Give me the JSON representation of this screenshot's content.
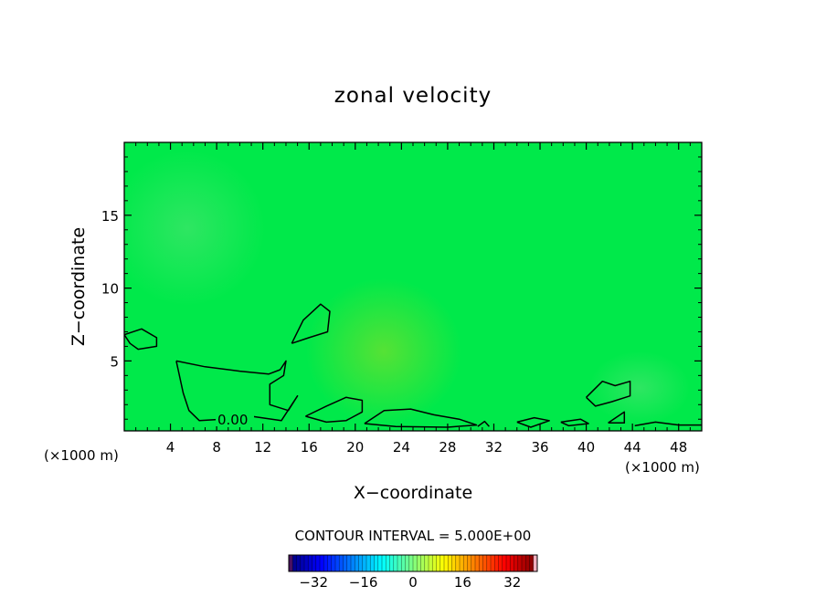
{
  "chart_data": {
    "type": "heatmap",
    "title": "zonal velocity",
    "xlabel": "X−coordinate",
    "ylabel": "Z−coordinate",
    "x_unit_left": "(×1000 m)",
    "x_unit_right": "(×1000 m)",
    "xlim": [
      0,
      50
    ],
    "ylim": [
      0.2,
      20
    ],
    "x_ticks": [
      4,
      8,
      12,
      16,
      20,
      24,
      28,
      32,
      36,
      40,
      44,
      48
    ],
    "y_ticks": [
      5,
      10,
      15
    ],
    "contour_label": "0.00",
    "contour_interval_text": "CONTOUR INTERVAL = 5.000E+00",
    "colorbar": {
      "min": -40,
      "max": 40,
      "ticks": [
        -32,
        -16,
        0,
        16,
        32
      ],
      "tick_labels": [
        "−32",
        "−16",
        "0",
        "16",
        "32"
      ]
    },
    "field_colors": {
      "background": "#00e94a",
      "light_patch": "#2be55c",
      "warm_patch": "#52e23a"
    },
    "zero_contours": [
      [
        [
          0,
          6.8
        ],
        [
          1.5,
          7.2
        ],
        [
          2.8,
          6.6
        ],
        [
          2.8,
          6.0
        ],
        [
          1.2,
          5.8
        ],
        [
          0.5,
          6.2
        ],
        [
          0,
          6.8
        ]
      ],
      [
        [
          4.5,
          5.0
        ],
        [
          7,
          4.6
        ],
        [
          10,
          4.3
        ],
        [
          12.5,
          4.1
        ],
        [
          13.5,
          4.4
        ],
        [
          14,
          5.0
        ],
        [
          13.8,
          4.0
        ],
        [
          12.6,
          3.4
        ],
        [
          12.6,
          2.0
        ],
        [
          14.2,
          1.6
        ],
        [
          15,
          2.6
        ],
        [
          13.6,
          0.9
        ],
        [
          11,
          1.2
        ],
        [
          8.5,
          1.0
        ],
        [
          6.5,
          0.9
        ],
        [
          5.6,
          1.6
        ],
        [
          5.1,
          2.8
        ],
        [
          4.5,
          5.0
        ]
      ],
      [
        [
          14.5,
          6.2
        ],
        [
          15.5,
          7.8
        ],
        [
          17,
          8.9
        ],
        [
          17.8,
          8.4
        ],
        [
          17.6,
          7.0
        ],
        [
          16,
          6.6
        ],
        [
          14.5,
          6.2
        ]
      ],
      [
        [
          15.7,
          1.2
        ],
        [
          17.5,
          1.9
        ],
        [
          19.2,
          2.5
        ],
        [
          20.6,
          2.3
        ],
        [
          20.6,
          1.5
        ],
        [
          19.2,
          0.9
        ],
        [
          17.5,
          0.8
        ],
        [
          15.7,
          1.2
        ]
      ],
      [
        [
          20.8,
          0.7
        ],
        [
          22.5,
          1.6
        ],
        [
          24.8,
          1.7
        ],
        [
          26.8,
          1.3
        ],
        [
          29,
          1.0
        ],
        [
          30.5,
          0.6
        ],
        [
          28,
          0.45
        ],
        [
          23.5,
          0.5
        ],
        [
          20.8,
          0.7
        ]
      ],
      [
        [
          34,
          0.8
        ],
        [
          35.5,
          1.1
        ],
        [
          36.8,
          0.9
        ],
        [
          35.2,
          0.45
        ],
        [
          34,
          0.8
        ]
      ],
      [
        [
          37.8,
          0.8
        ],
        [
          39.5,
          1.0
        ],
        [
          40.2,
          0.7
        ],
        [
          38.5,
          0.55
        ],
        [
          37.8,
          0.8
        ]
      ],
      [
        [
          40,
          2.5
        ],
        [
          41.4,
          3.6
        ],
        [
          42.5,
          3.3
        ],
        [
          43.8,
          3.6
        ],
        [
          43.8,
          2.6
        ],
        [
          42.2,
          2.2
        ],
        [
          40.8,
          1.9
        ],
        [
          40,
          2.5
        ]
      ],
      [
        [
          41.9,
          0.75
        ],
        [
          43.3,
          1.5
        ],
        [
          43.3,
          0.75
        ],
        [
          41.9,
          0.75
        ]
      ],
      [
        [
          44.2,
          0.55
        ],
        [
          46,
          0.8
        ],
        [
          48,
          0.6
        ],
        [
          50,
          0.6
        ]
      ],
      [
        [
          30.6,
          0.5
        ],
        [
          31.2,
          0.85
        ],
        [
          31.6,
          0.5
        ]
      ]
    ]
  }
}
